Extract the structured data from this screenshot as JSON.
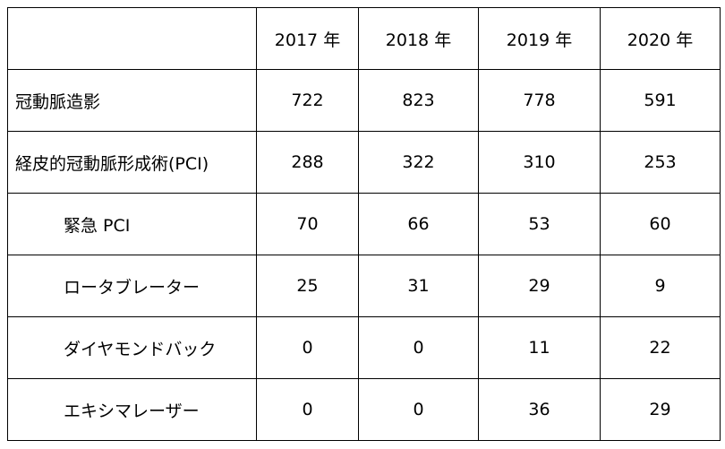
{
  "table": {
    "header": [
      "",
      "2017 年",
      "2018 年",
      "2019 年",
      "2020 年"
    ],
    "rows": [
      {
        "label": "冠動脈造影",
        "indent": 0,
        "values": [
          "722",
          "823",
          "778",
          "591"
        ]
      },
      {
        "label": "経皮的冠動脈形成術(PCI)",
        "indent": 0,
        "values": [
          "288",
          "322",
          "310",
          "253"
        ]
      },
      {
        "label": "緊急 PCI",
        "indent": 1,
        "values": [
          "70",
          "66",
          "53",
          "60"
        ]
      },
      {
        "label": "ロータブレーター",
        "indent": 1,
        "values": [
          "25",
          "31",
          "29",
          "9"
        ]
      },
      {
        "label": "ダイヤモンドバック",
        "indent": 1,
        "values": [
          "0",
          "0",
          "11",
          "22"
        ]
      },
      {
        "label": "エキシマレーザー",
        "indent": 1,
        "values": [
          "0",
          "0",
          "36",
          "29"
        ]
      }
    ]
  }
}
